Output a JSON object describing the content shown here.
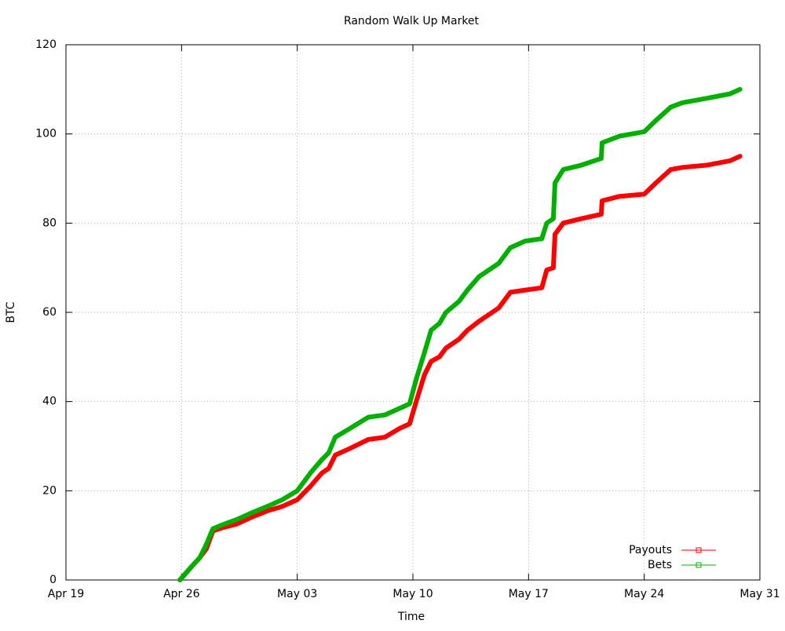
{
  "chart_data": {
    "type": "line",
    "title": "Random Walk Up Market",
    "xlabel": "Time",
    "ylabel": "BTC",
    "x": [
      6.9,
      7.6,
      8.1,
      8.5,
      8.9,
      9.55,
      10.3,
      11.2,
      12.2,
      13.1,
      14.0,
      14.8,
      15.5,
      15.9,
      16.3,
      17.2,
      18.3,
      19.3,
      20.2,
      20.8,
      21.2,
      21.7,
      22.1,
      22.6,
      23.0,
      23.8,
      24.3,
      25.0,
      26.2,
      26.9,
      27.8,
      28.8,
      29.1,
      29.5,
      29.6,
      30.1,
      31.2,
      32.4,
      32.45,
      33.5,
      35.0,
      35.7,
      36.6,
      37.3,
      38.8,
      40.2,
      40.8
    ],
    "series": [
      {
        "name": "Payouts",
        "color": "#ff0000",
        "values": [
          0,
          3,
          5,
          7,
          11,
          11.8,
          12.5,
          14,
          15.5,
          16.5,
          18,
          21,
          24,
          25,
          28,
          29.5,
          31.5,
          32,
          34,
          35,
          40,
          46,
          49,
          50,
          52,
          54,
          56,
          58,
          61,
          64.5,
          65,
          65.5,
          69.5,
          70,
          77.5,
          80,
          81,
          82,
          85,
          86,
          86.5,
          89,
          92,
          92.5,
          93,
          94,
          95
        ]
      },
      {
        "name": "Bets",
        "color": "#00b000",
        "values": [
          0,
          3,
          5,
          8,
          11.5,
          12.5,
          13.5,
          15,
          16.5,
          18,
          20,
          24,
          27,
          28.5,
          32,
          34,
          36.5,
          37,
          38.5,
          39.5,
          45,
          51,
          56,
          57.5,
          60,
          62.5,
          65,
          68,
          71,
          74.5,
          76,
          76.5,
          80,
          81,
          89,
          92,
          93,
          94.5,
          98,
          99.5,
          100.5,
          103,
          106,
          107,
          108,
          109,
          110
        ]
      }
    ],
    "xlim": [
      0,
      42
    ],
    "xticks": [
      {
        "value": 0,
        "label": "Apr 19"
      },
      {
        "value": 7,
        "label": "Apr 26"
      },
      {
        "value": 14,
        "label": "May 03"
      },
      {
        "value": 21,
        "label": "May 10"
      },
      {
        "value": 28,
        "label": "May 17"
      },
      {
        "value": 35,
        "label": "May 24"
      },
      {
        "value": 42,
        "label": "May 31"
      }
    ],
    "ylim": [
      0,
      120
    ],
    "yticks": [
      0,
      20,
      40,
      60,
      80,
      100,
      120
    ],
    "grid": true,
    "legend": "lower right"
  }
}
